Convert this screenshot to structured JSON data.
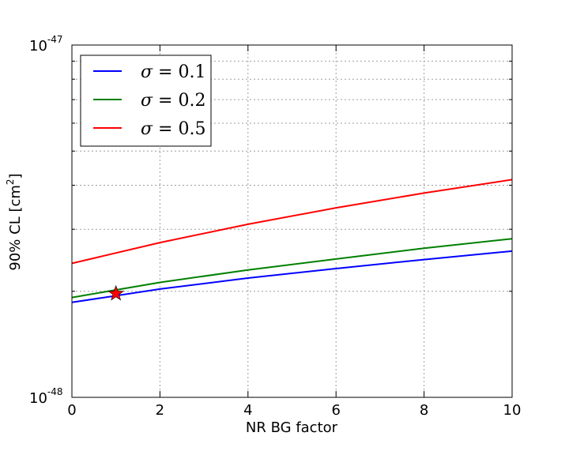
{
  "chart_data": {
    "type": "line",
    "xlabel": "NR BG factor",
    "ylabel_main": "90% CL [cm",
    "ylabel_sup": "2",
    "ylabel_close": "]",
    "y_scale": "log",
    "xlim": [
      0,
      10
    ],
    "ylim": [
      1e-48,
      1e-47
    ],
    "x_ticks": [
      0,
      2,
      4,
      6,
      8,
      10
    ],
    "x_tick_labels": [
      "0",
      "2",
      "4",
      "6",
      "8",
      "10"
    ],
    "y_ticks": [
      {
        "value": 1e-48,
        "base": "10",
        "exp": "-48"
      },
      {
        "value": 1e-47,
        "base": "10",
        "exp": "-47"
      }
    ],
    "y_minor_ticks": [
      2e-48,
      3e-48,
      4e-48,
      5e-48,
      6e-48,
      7e-48,
      8e-48,
      9e-48
    ],
    "grid": true,
    "legend_position": "top-left",
    "series": [
      {
        "name": "σ = 0.1",
        "symbol": "σ",
        "value_text": "0.1",
        "color": "#0000ff",
        "x": [
          0,
          2,
          4,
          6,
          8,
          10
        ],
        "y": [
          1.86e-48,
          2.03e-48,
          2.18e-48,
          2.32e-48,
          2.46e-48,
          2.6e-48
        ]
      },
      {
        "name": "σ = 0.2",
        "symbol": "σ",
        "value_text": "0.2",
        "color": "#008000",
        "x": [
          0,
          2,
          4,
          6,
          8,
          10
        ],
        "y": [
          1.92e-48,
          2.12e-48,
          2.3e-48,
          2.47e-48,
          2.65e-48,
          2.82e-48
        ]
      },
      {
        "name": "σ = 0.5",
        "symbol": "σ",
        "value_text": "0.5",
        "color": "#ff0000",
        "x": [
          0,
          2,
          4,
          6,
          8,
          10
        ],
        "y": [
          2.4e-48,
          2.75e-48,
          3.1e-48,
          3.45e-48,
          3.8e-48,
          4.15e-48
        ]
      }
    ],
    "marker": {
      "shape": "star",
      "x": 1,
      "y": 1.97e-48,
      "color": "#ff0000"
    }
  }
}
